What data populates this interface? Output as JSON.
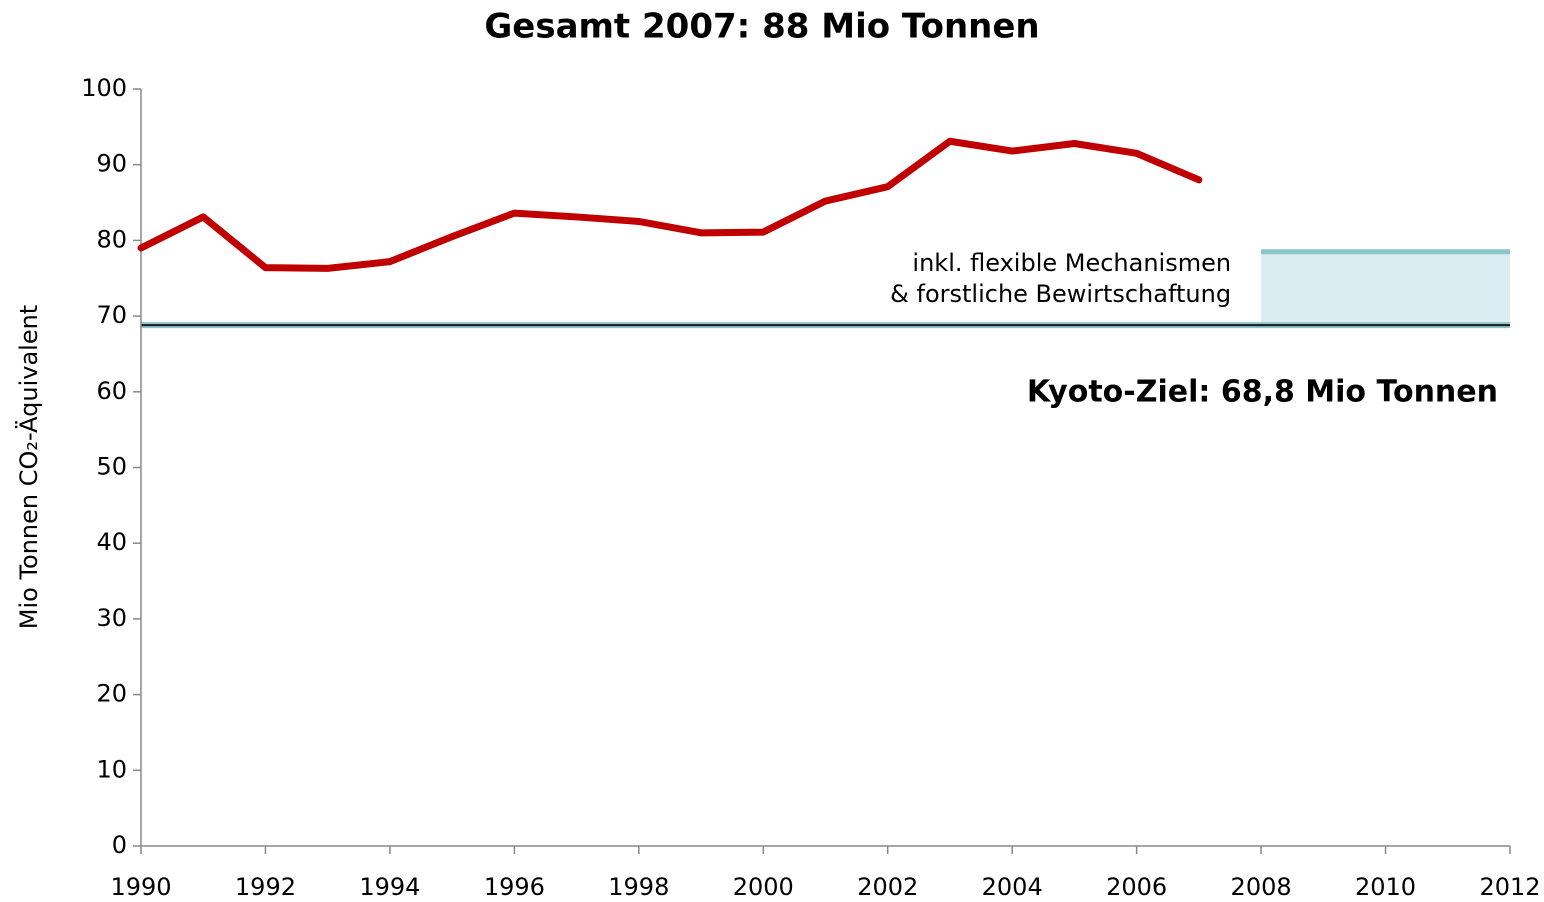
{
  "chart_data": {
    "type": "line",
    "title": "Gesamt 2007: 88 Mio Tonnen",
    "y_label": "Mio Tonnen CO₂-Äquivalent",
    "x": [
      1990,
      1991,
      1992,
      1993,
      1994,
      1995,
      1996,
      1997,
      1998,
      1999,
      2000,
      2001,
      2002,
      2003,
      2004,
      2005,
      2006,
      2007
    ],
    "values": [
      79.0,
      83.1,
      76.4,
      76.3,
      77.2,
      80.5,
      83.6,
      83.1,
      82.5,
      81.0,
      81.1,
      85.2,
      87.1,
      93.1,
      91.8,
      92.8,
      91.5,
      88.0
    ],
    "color": "#c00000",
    "xlim": [
      1990,
      2012
    ],
    "xticks": [
      1990,
      1992,
      1994,
      1996,
      1998,
      2000,
      2002,
      2004,
      2006,
      2008,
      2010,
      2012
    ],
    "ylim": [
      0,
      100
    ],
    "yticks": [
      0,
      10,
      20,
      30,
      40,
      50,
      60,
      70,
      80,
      90,
      100
    ],
    "grid": false,
    "reference_line": {
      "value": 68.8,
      "label": "Kyoto-Ziel: 68,8 Mio Tonnen",
      "color": "#1a1a1a"
    },
    "band": {
      "xlim": [
        2008,
        2012
      ],
      "ylim": [
        68.8,
        78.5
      ],
      "color": "#daeef2",
      "edge_color": "#8cc4cc",
      "label_lines": [
        "inkl. flexible Mechanismen",
        "& forstliche Bewirtschaftung"
      ]
    }
  }
}
